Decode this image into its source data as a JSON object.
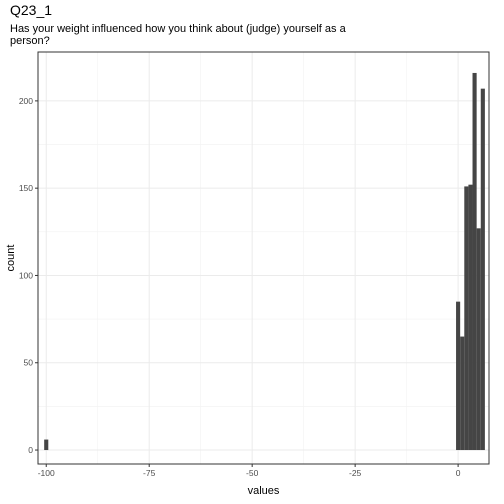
{
  "chart_data": {
    "type": "bar",
    "title": "Q23_1",
    "subtitle_lines": [
      "Has your weight influenced how you think about (judge) yourself as a",
      "person?"
    ],
    "xlabel": "values",
    "ylabel": "count",
    "xlim": [
      -102,
      7.5
    ],
    "ylim": [
      -8,
      228
    ],
    "x_ticks": [
      -100,
      -75,
      -50,
      -25,
      0
    ],
    "x_tick_labels": [
      "-100",
      "-75",
      "-50",
      "-25",
      "0"
    ],
    "y_ticks": [
      0,
      50,
      100,
      150,
      200
    ],
    "y_tick_labels": [
      "0",
      "50",
      "100",
      "150",
      "200"
    ],
    "grid": true,
    "bin_width": 1,
    "bins": [
      {
        "x": -100,
        "count": 6
      },
      {
        "x": 0,
        "count": 85
      },
      {
        "x": 1,
        "count": 65
      },
      {
        "x": 2,
        "count": 151
      },
      {
        "x": 3,
        "count": 152
      },
      {
        "x": 4,
        "count": 216
      },
      {
        "x": 5,
        "count": 127
      },
      {
        "x": 6,
        "count": 207
      }
    ],
    "colors": {
      "bar": "#454545",
      "grid": "#ebebeb",
      "border": "#333333"
    }
  }
}
